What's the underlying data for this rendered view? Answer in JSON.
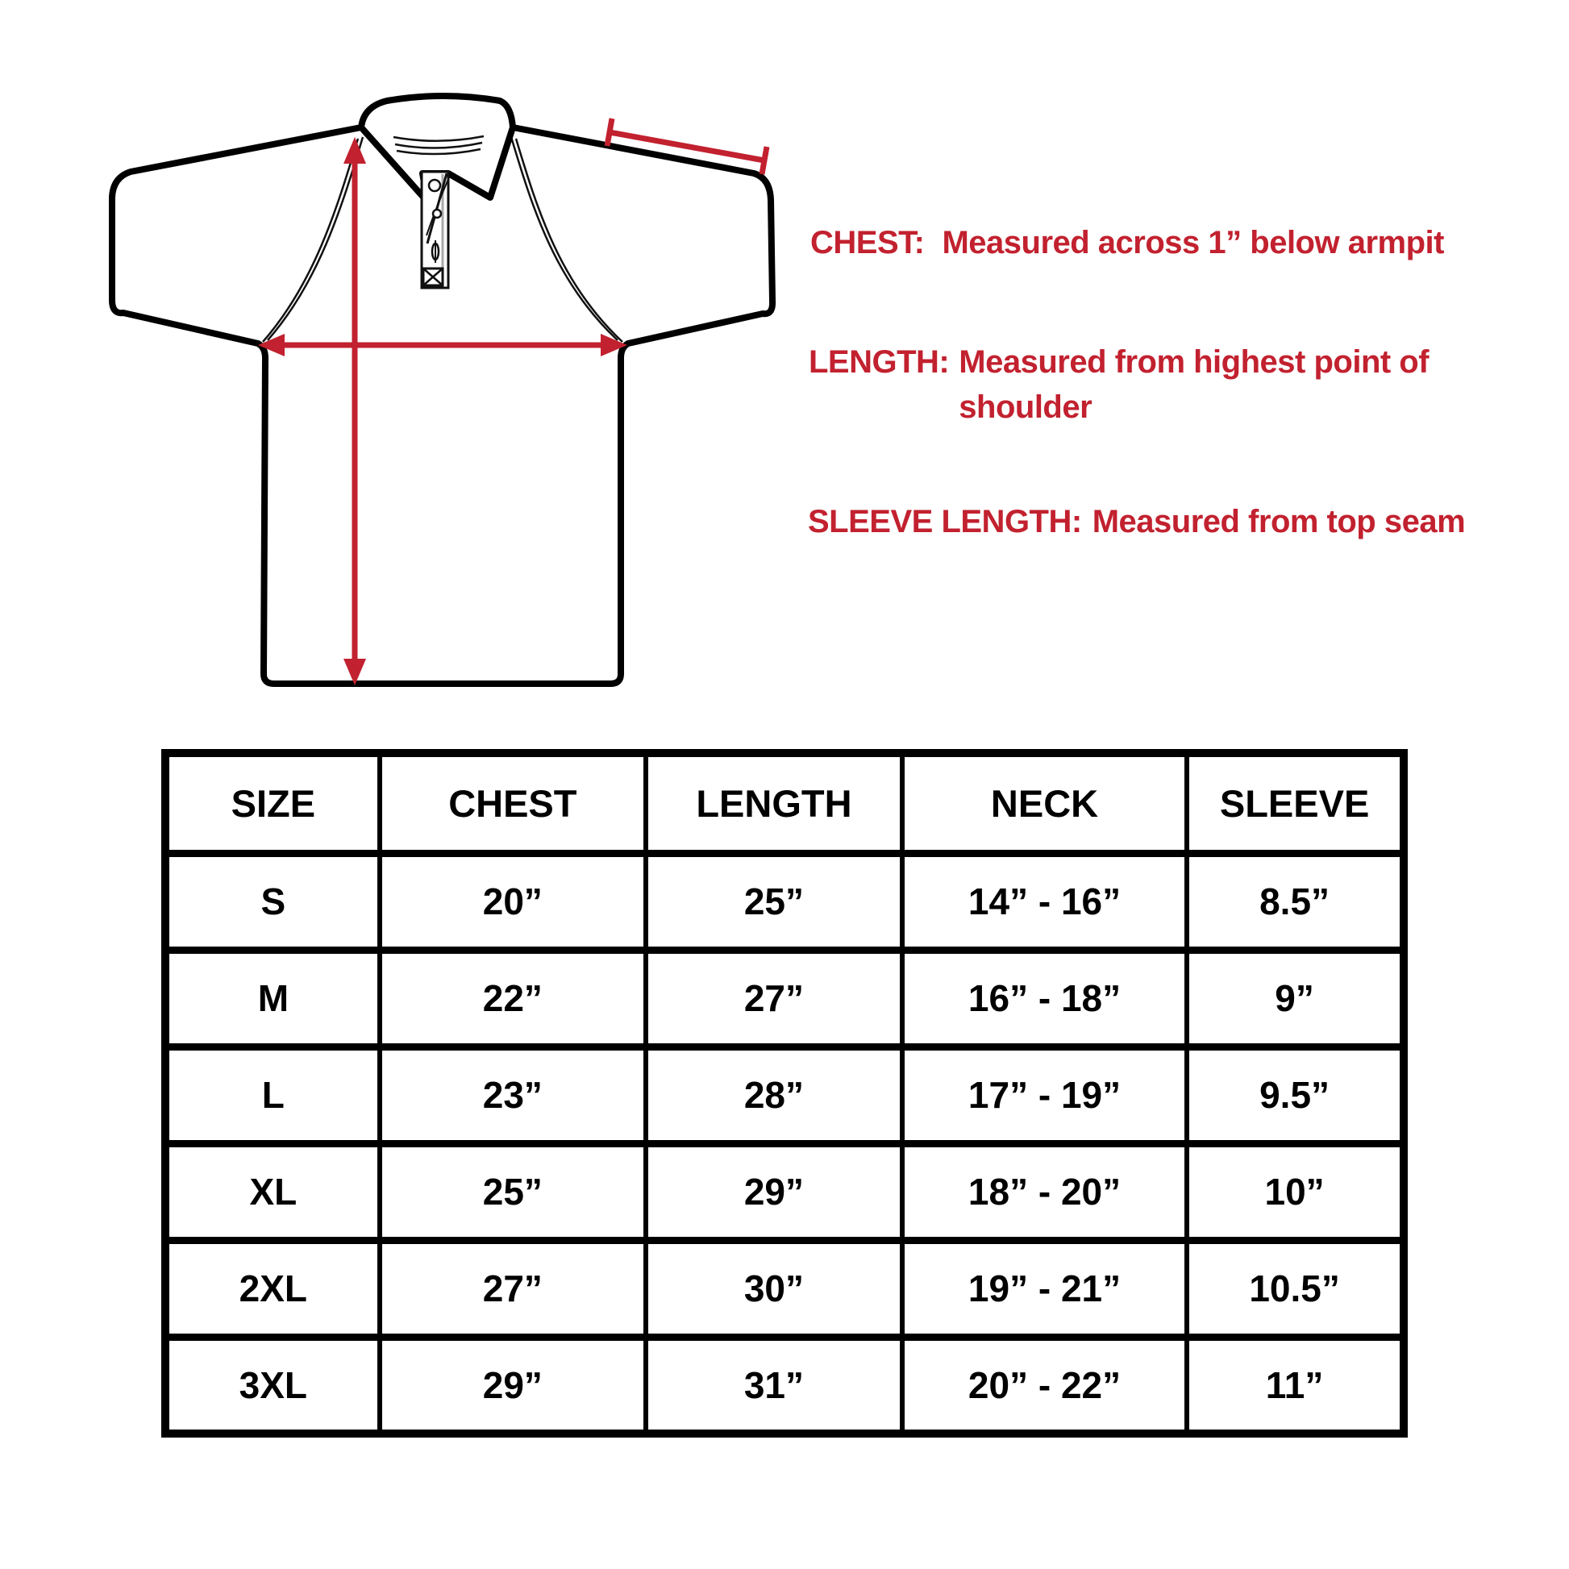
{
  "colors": {
    "accent_red": "#C2212F",
    "line_black": "#000000",
    "background": "#ffffff"
  },
  "diagram": {
    "subject": "polo shirt measurement drawing",
    "arrows": [
      {
        "name": "length-arrow",
        "orientation": "vertical"
      },
      {
        "name": "chest-arrow",
        "orientation": "horizontal"
      },
      {
        "name": "sleeve-length-arrow",
        "orientation": "diagonal"
      }
    ]
  },
  "annotations": [
    {
      "label": "CHEST:",
      "text": "Measured across 1” below armpit"
    },
    {
      "label": "LENGTH:",
      "text": "Measured from highest point of shoulder"
    },
    {
      "label": "SLEEVE LENGTH:",
      "text": "Measured from top seam"
    }
  ],
  "table": {
    "columns": [
      "SIZE",
      "CHEST",
      "LENGTH",
      "NECK",
      "SLEEVE"
    ],
    "rows": [
      [
        "S",
        "20”",
        "25”",
        "14” - 16”",
        "8.5”"
      ],
      [
        "M",
        "22”",
        "27”",
        "16” - 18”",
        "9”"
      ],
      [
        "L",
        "23”",
        "28”",
        "17” - 19”",
        "9.5”"
      ],
      [
        "XL",
        "25”",
        "29”",
        "18” - 20”",
        "10”"
      ],
      [
        "2XL",
        "27”",
        "30”",
        "19” - 21”",
        "10.5”"
      ],
      [
        "3XL",
        "29”",
        "31”",
        "20” - 22”",
        "11”"
      ]
    ]
  }
}
